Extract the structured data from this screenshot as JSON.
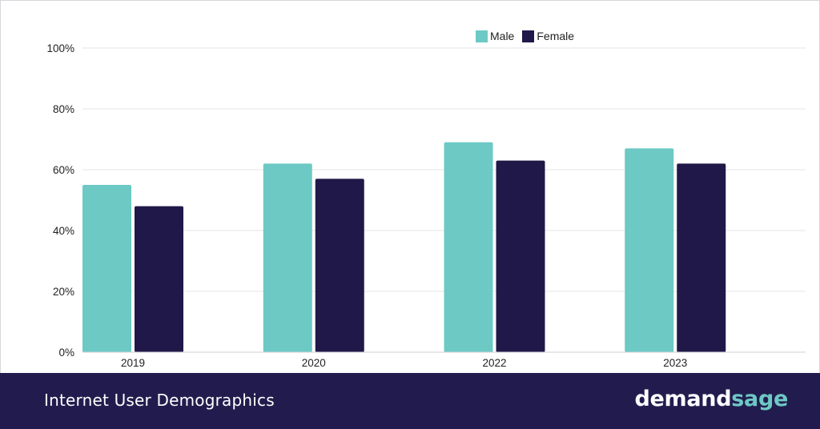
{
  "footer": {
    "title": "Internet User Demographics",
    "brand_part1": "demand",
    "brand_part2": "sage"
  },
  "colors": {
    "male": "#6cc9c4",
    "female": "#201848",
    "grid": "#e6e6ea",
    "footer_bg": "#221c4e"
  },
  "chart_data": {
    "type": "bar",
    "categories": [
      "2019",
      "2020",
      "2022",
      "2023"
    ],
    "series": [
      {
        "name": "Male",
        "values": [
          55,
          62,
          69,
          67
        ]
      },
      {
        "name": "Female",
        "values": [
          48,
          57,
          63,
          62
        ]
      }
    ],
    "ylim": [
      0,
      100
    ],
    "yticks": [
      "0%",
      "20%",
      "40%",
      "60%",
      "80%",
      "100%"
    ],
    "ytick_values": [
      0,
      20,
      40,
      60,
      80,
      100
    ],
    "legend": "top-center",
    "grid": true
  }
}
